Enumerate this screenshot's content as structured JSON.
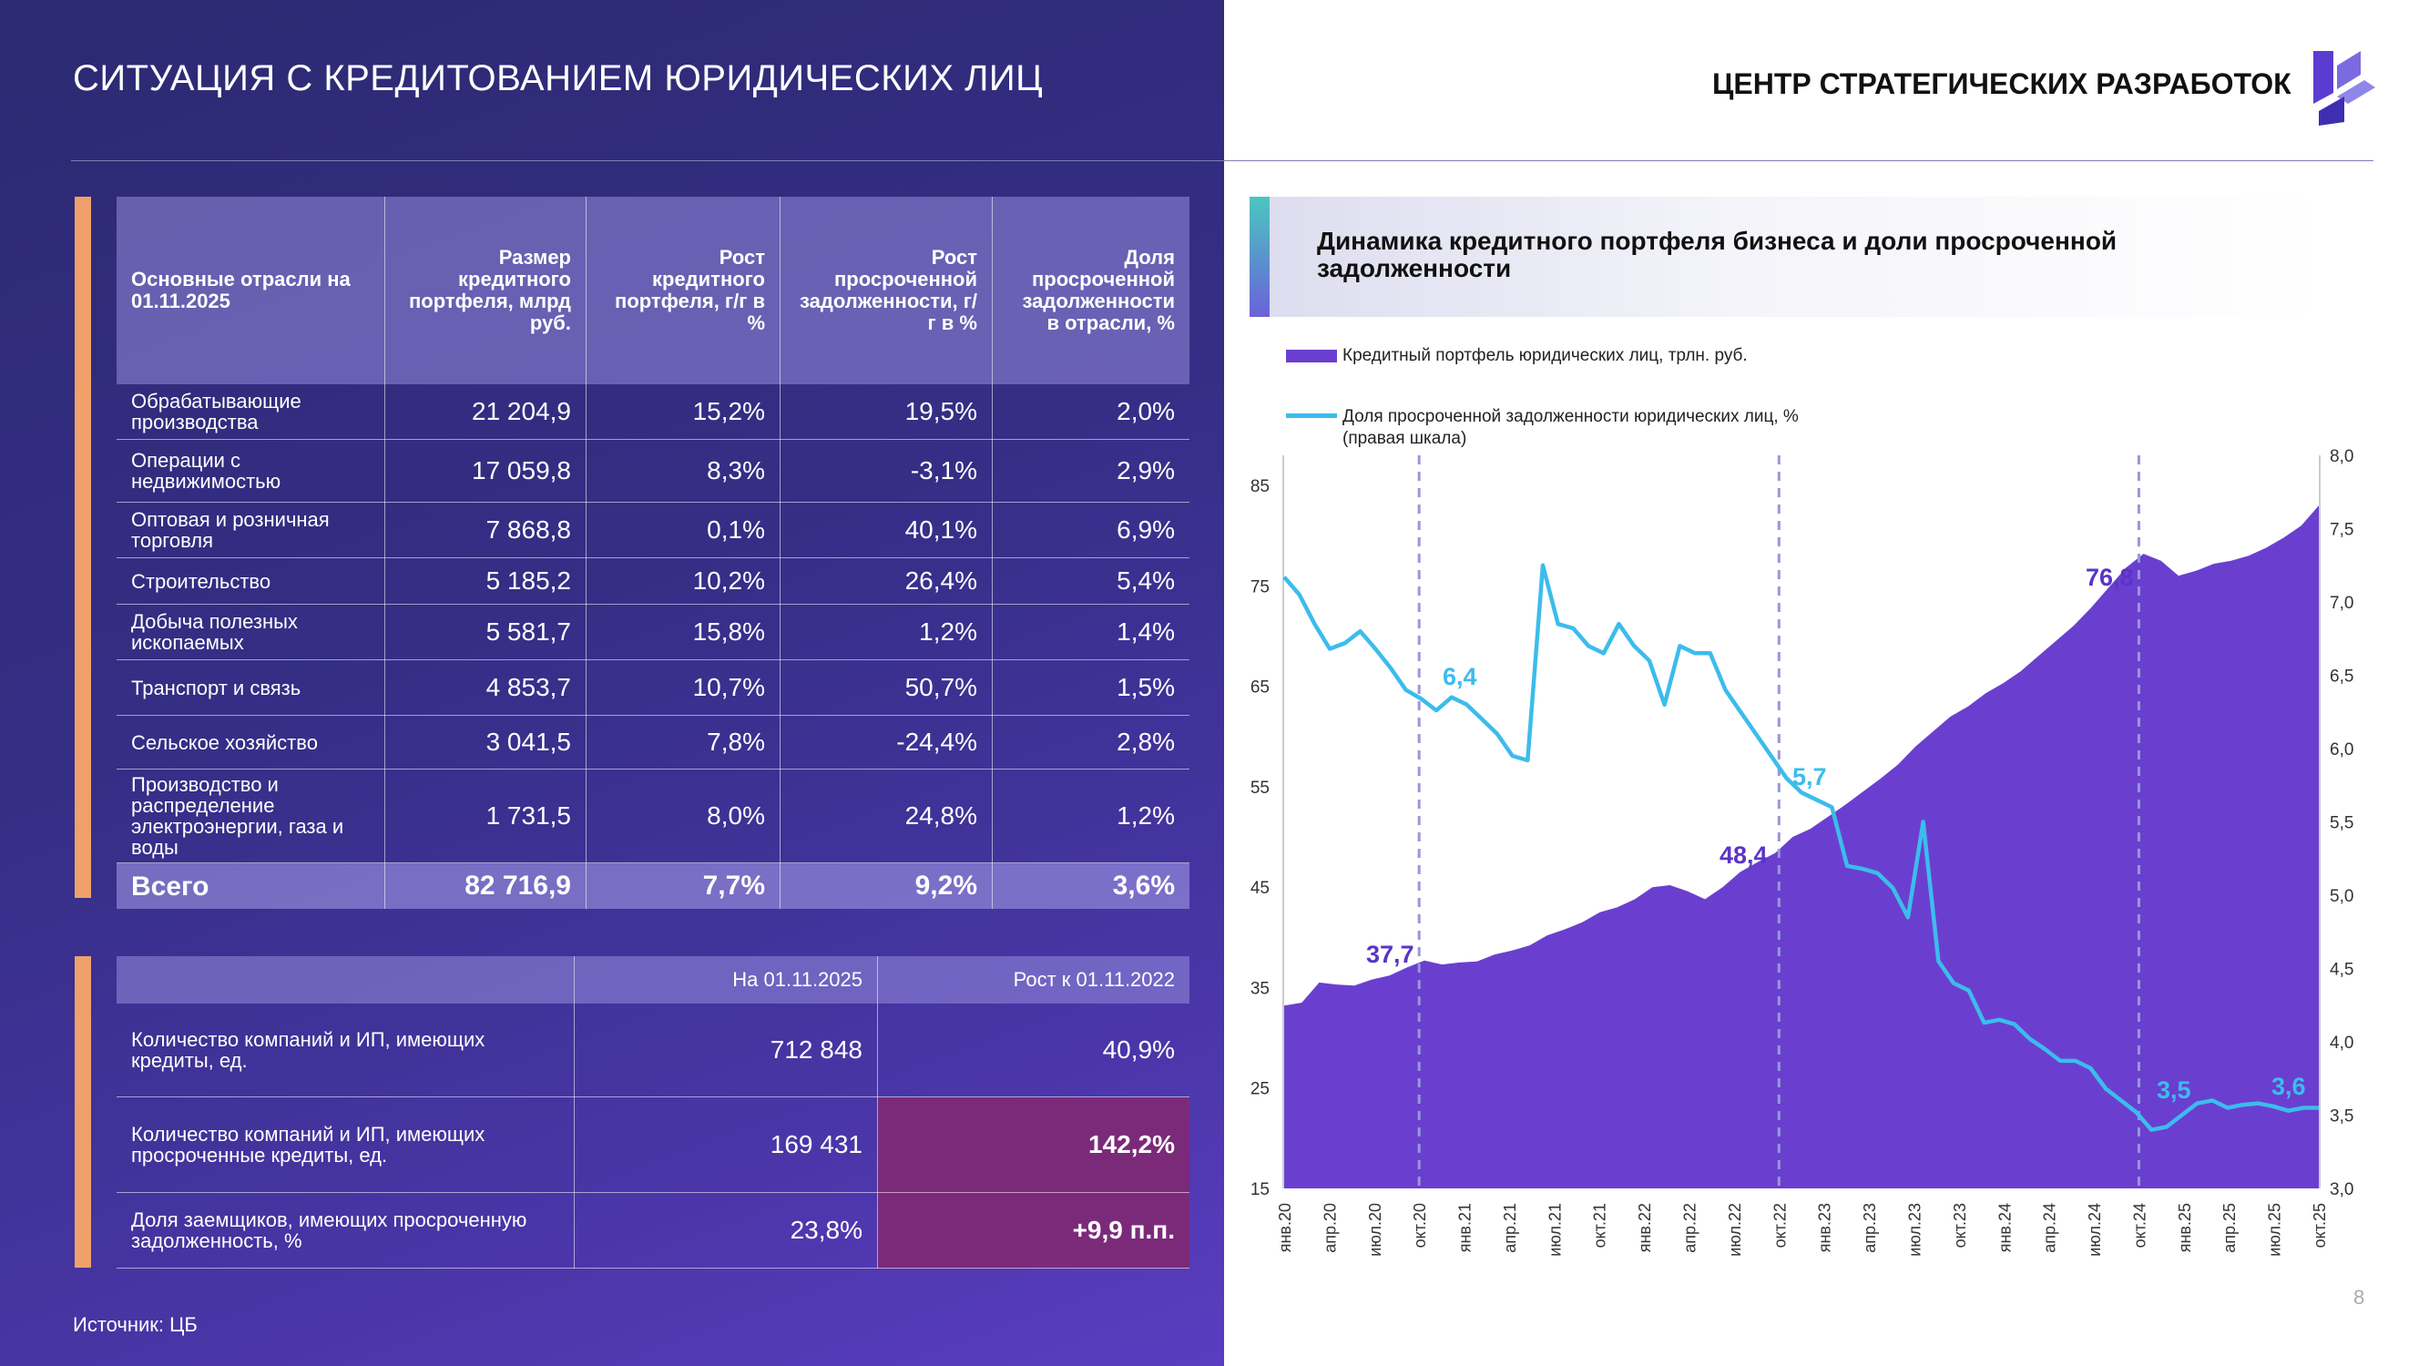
{
  "page": {
    "title": "СИТУАЦИЯ С КРЕДИТОВАНИЕМ ЮРИДИЧЕСКИХ ЛИЦ",
    "brand": "ЦЕНТР СТРАТЕГИЧЕСКИХ РАЗРАБОТОК",
    "source": "Источник: ЦБ",
    "page_number": "8"
  },
  "table1": {
    "headers": [
      "Основные отрасли на 01.11.2025",
      "Размер кредитного портфеля, млрд руб.",
      "Рост кредитного портфеля, г/г в %",
      "Рост просроченной задолженности, г/г в %",
      "Доля просроченной задолженности в отрасли, %"
    ],
    "rows": [
      [
        "Обрабатывающие производства",
        "21 204,9",
        "15,2%",
        "19,5%",
        "2,0%"
      ],
      [
        "Операции с недвижимостью",
        "17 059,8",
        "8,3%",
        "-3,1%",
        "2,9%"
      ],
      [
        "Оптовая и розничная торговля",
        "7 868,8",
        "0,1%",
        "40,1%",
        "6,9%"
      ],
      [
        "Строительство",
        "5 185,2",
        "10,2%",
        "26,4%",
        "5,4%"
      ],
      [
        "Добыча полезных ископаемых",
        "5 581,7",
        "15,8%",
        "1,2%",
        "1,4%"
      ],
      [
        "Транспорт и связь",
        "4 853,7",
        "10,7%",
        "50,7%",
        "1,5%"
      ],
      [
        "Сельское хозяйство",
        "3 041,5",
        "7,8%",
        "-24,4%",
        "2,8%"
      ],
      [
        "Производство и распределение электроэнергии, газа и воды",
        "1 731,5",
        "8,0%",
        "24,8%",
        "1,2%"
      ]
    ],
    "total": [
      "Всего",
      "82 716,9",
      "7,7%",
      "9,2%",
      "3,6%"
    ]
  },
  "table2": {
    "headers": [
      "",
      "На 01.11.2025",
      "Рост к 01.11.2022"
    ],
    "rows": [
      [
        "Количество компаний и ИП, имеющих кредиты, ед.",
        "712 848",
        "40,9%"
      ],
      [
        "Количество компаний и ИП, имеющих просроченные кредиты, ед.",
        "169 431",
        "142,2%"
      ],
      [
        "Доля заемщиков, имеющих просроченную задолженность, %",
        "23,8%",
        "+9,9 п.п."
      ]
    ]
  },
  "colors": {
    "area": "#6a3fd0",
    "line": "#3cbcec",
    "accent": "#f0a06a",
    "highlight": "#7b2a7a"
  },
  "chart_data": {
    "type": "area+line",
    "title": "Динамика кредитного портфеля бизнеса и доли просроченной задолженности",
    "legend": {
      "area": "Кредитный портфель юридических лиц, трлн. руб.",
      "line": "Доля просроченной задолженности юридических лиц, %",
      "line_note": "(правая шкала)"
    },
    "x_tick_labels": [
      "янв.20",
      "апр.20",
      "июл.20",
      "окт.20",
      "янв.21",
      "апр.21",
      "июл.21",
      "окт.21",
      "янв.22",
      "апр.22",
      "июл.22",
      "окт.22",
      "янв.23",
      "апр.23",
      "июл.23",
      "окт.23",
      "янв.24",
      "апр.24",
      "июл.24",
      "окт.24",
      "янв.25",
      "апр.25",
      "июл.25",
      "окт.25"
    ],
    "left_axis": {
      "ylim": [
        15,
        88
      ],
      "ticks": [
        15,
        25,
        35,
        45,
        55,
        65,
        75,
        85
      ]
    },
    "right_axis": {
      "ylim": [
        3.0,
        8.0
      ],
      "ticks": [
        "3,0",
        "3,5",
        "4,0",
        "4,5",
        "5,0",
        "5,5",
        "6,0",
        "6,5",
        "7,0",
        "7,5",
        "8,0"
      ]
    },
    "series": [
      {
        "name": "Кредитный портфель юридических лиц, трлн. руб.",
        "axis": "left",
        "type": "area",
        "values": [
          33.2,
          33.5,
          35.5,
          35.3,
          35.2,
          35.8,
          36.2,
          37.0,
          37.7,
          37.3,
          37.5,
          37.6,
          38.3,
          38.7,
          39.2,
          40.2,
          40.8,
          41.5,
          42.5,
          43.0,
          43.8,
          45.0,
          45.2,
          44.6,
          43.8,
          45.0,
          46.5,
          47.5,
          48.4,
          50.0,
          50.8,
          52.0,
          53.2,
          54.5,
          55.8,
          57.2,
          59.0,
          60.5,
          62.0,
          63.0,
          64.3,
          65.3,
          66.5,
          68.0,
          69.5,
          71.0,
          72.8,
          74.8,
          76.8,
          78.2,
          77.5,
          76.0,
          76.5,
          77.2,
          77.5,
          78.0,
          78.8,
          79.8,
          81.0,
          83.0
        ]
      },
      {
        "name": "Доля просроченной задолженности юридических лиц, %",
        "axis": "right",
        "type": "line",
        "values": [
          7.17,
          7.05,
          6.85,
          6.68,
          6.72,
          6.8,
          6.68,
          6.55,
          6.4,
          6.34,
          6.26,
          6.35,
          6.3,
          6.2,
          6.1,
          5.95,
          5.92,
          7.25,
          6.85,
          6.82,
          6.7,
          6.65,
          6.85,
          6.7,
          6.6,
          6.3,
          6.7,
          6.65,
          6.65,
          6.4,
          6.25,
          6.1,
          5.95,
          5.8,
          5.7,
          5.65,
          5.6,
          5.2,
          5.18,
          5.15,
          5.05,
          4.85,
          5.5,
          4.55,
          4.4,
          4.35,
          4.13,
          4.15,
          4.12,
          4.02,
          3.95,
          3.87,
          3.87,
          3.82,
          3.68,
          3.6,
          3.52,
          3.4,
          3.42,
          3.5,
          3.58,
          3.6,
          3.55,
          3.57,
          3.58,
          3.56,
          3.53,
          3.55,
          3.55
        ]
      }
    ],
    "annotations": {
      "area": [
        {
          "value": "37,7"
        },
        {
          "value": "48,4"
        },
        {
          "value": "76,8"
        }
      ],
      "line": [
        {
          "value": "6,4"
        },
        {
          "value": "5,7"
        },
        {
          "value": "3,5"
        },
        {
          "value": "3,6"
        }
      ]
    },
    "dashed_markers": [
      "окт.20",
      "окт.22",
      "окт.24"
    ]
  }
}
